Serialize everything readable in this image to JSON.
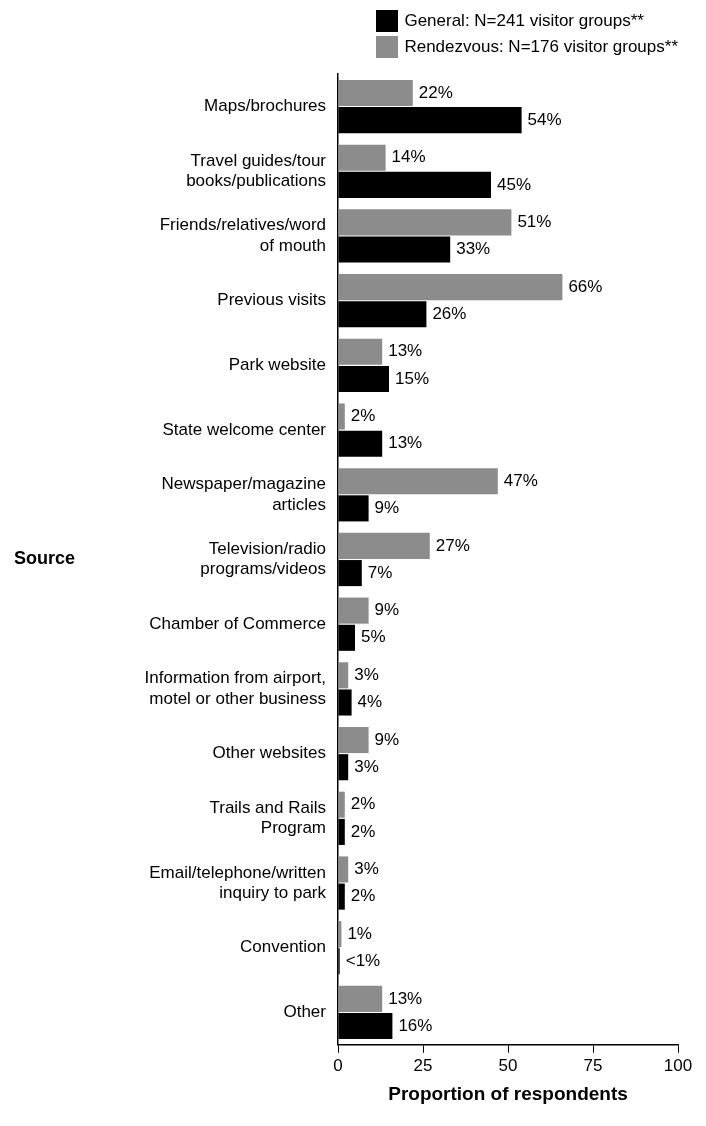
{
  "chart_data": {
    "type": "bar",
    "orientation": "horizontal",
    "categories": [
      "Maps/brochures",
      "Travel guides/tour books/publications",
      "Friends/relatives/word of mouth",
      "Previous visits",
      "Park website",
      "State welcome center",
      "Newspaper/magazine articles",
      "Television/radio programs/videos",
      "Chamber of Commerce",
      "Information from airport, motel or other business",
      "Other websites",
      "Trails and Rails Program",
      "Email/telephone/written inquiry to park",
      "Convention",
      "Other"
    ],
    "series": [
      {
        "name": "General: N=241 visitor groups**",
        "color": "#000000",
        "values": [
          54,
          45,
          33,
          26,
          15,
          13,
          9,
          7,
          5,
          4,
          3,
          2,
          2,
          0.5,
          16
        ],
        "value_labels": [
          "54%",
          "45%",
          "33%",
          "26%",
          "15%",
          "13%",
          "9%",
          "7%",
          "5%",
          "4%",
          "3%",
          "2%",
          "2%",
          "<1%",
          "16%"
        ]
      },
      {
        "name": "Rendezvous: N=176 visitor groups**",
        "color": "#8c8c8c",
        "values": [
          22,
          14,
          51,
          66,
          13,
          2,
          47,
          27,
          9,
          3,
          9,
          2,
          3,
          1,
          13
        ],
        "value_labels": [
          "22%",
          "14%",
          "51%",
          "66%",
          "13%",
          "2%",
          "47%",
          "27%",
          "9%",
          "3%",
          "9%",
          "2%",
          "3%",
          "1%",
          "13%"
        ]
      }
    ],
    "xlabel": "Proportion of respondents",
    "ylabel": "Source",
    "xlim": [
      0,
      100
    ],
    "xticks": [
      0,
      25,
      50,
      75,
      100
    ],
    "grid": false,
    "legend": "top right"
  }
}
